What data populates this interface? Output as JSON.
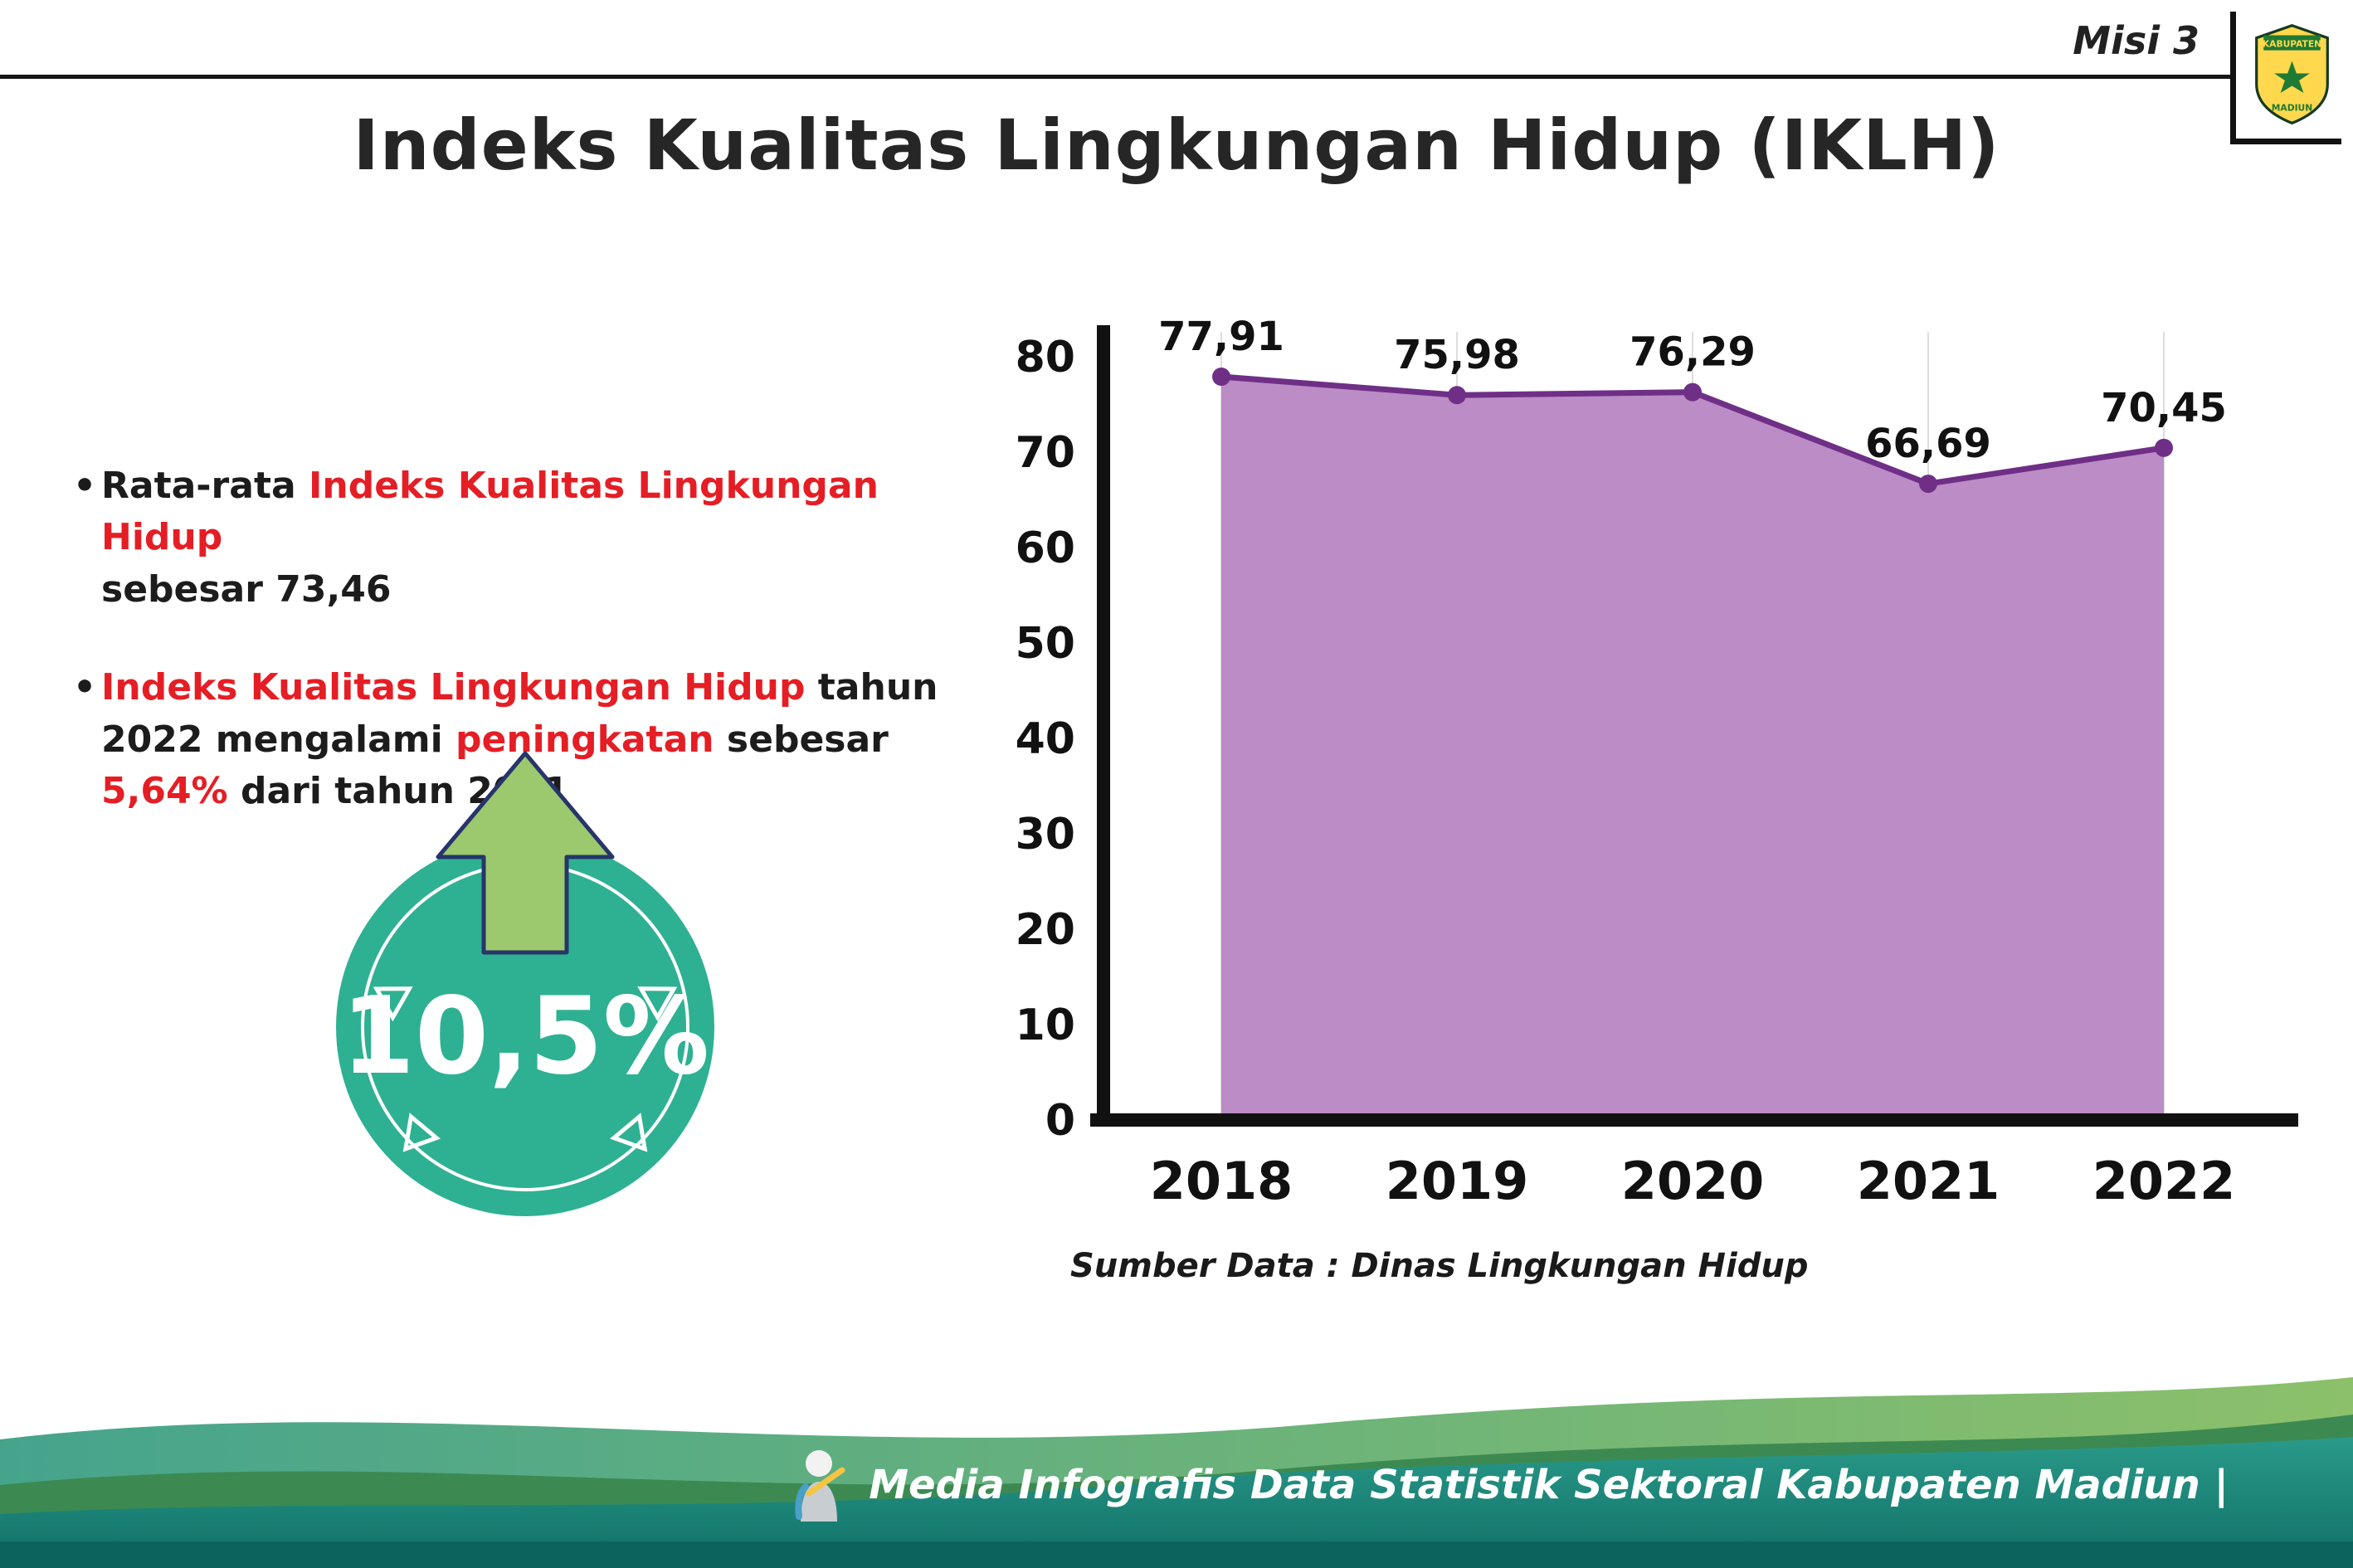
{
  "page": {
    "misi": "Misi 3",
    "title": "Indeks Kualitas Lingkungan Hidup (IKLH)"
  },
  "logo": {
    "line1": "KABUPATEN",
    "line2": "MADIUN"
  },
  "bullets": {
    "b1": {
      "seg1": "Rata-rata ",
      "seg2": "Indeks Kualitas Lingkungan Hidup",
      "seg3": "sebesar 73,46"
    },
    "b2": {
      "seg1": "Indeks Kualitas Lingkungan Hidup",
      "seg2": " tahun 2022 mengalami ",
      "seg3": "peningkatan",
      "seg4": " sebesar ",
      "seg5": "5,64%",
      "seg6": " dari tahun 2021"
    }
  },
  "badge": {
    "value": "10,5%"
  },
  "chart_data": {
    "type": "area",
    "title": "Indeks Kualitas Lingkungan Hidup (IKLH)",
    "categories": [
      "2018",
      "2019",
      "2020",
      "2021",
      "2022"
    ],
    "values": [
      77.91,
      75.98,
      76.29,
      66.69,
      70.45
    ],
    "value_labels": [
      "77,91",
      "75,98",
      "76,29",
      "66,69",
      "70,45"
    ],
    "xlabel": "",
    "ylabel": "",
    "ylim": [
      0,
      80
    ],
    "ytick_step": 10,
    "grid": "vertical-light",
    "legend": "none",
    "source": "Sumber Data : Dinas Lingkungan Hidup"
  },
  "footer": {
    "text": "Media Infografis Data Statistik Sektoral Kabupaten Madiun |"
  },
  "colors": {
    "red": "#e51e25",
    "area_fill": "#bb8cc5",
    "line": "#6f2f87",
    "badge_teal": "#2eb192",
    "arrow_green": "#9cc96d",
    "arrow_outline": "#27356b",
    "footer_light_a": "#46a48d",
    "footer_light_b": "#8cc06a",
    "footer_green": "#3c8a52",
    "footer_teal_a": "#2a9a8a",
    "footer_teal_b": "#0f6f66",
    "footer_dark": "#0c635e"
  }
}
